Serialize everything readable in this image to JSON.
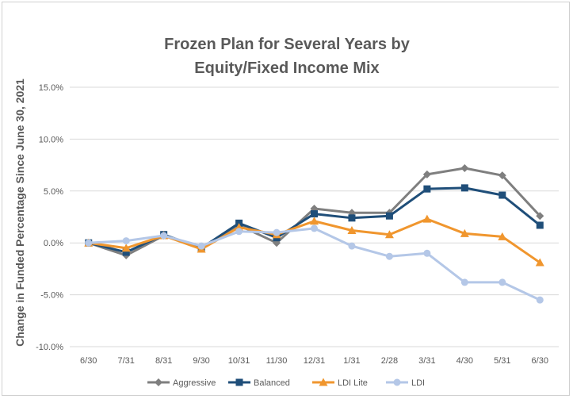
{
  "chart_data": {
    "type": "line",
    "title_lines": [
      "Frozen Plan for Several Years by",
      "Equity/Fixed Income Mix"
    ],
    "xlabel": "",
    "ylabel": "Change in Funded Percentage Since June 30, 2021",
    "categories": [
      "6/30",
      "7/31",
      "8/31",
      "9/30",
      "10/31",
      "11/30",
      "12/31",
      "1/31",
      "2/28",
      "3/31",
      "4/30",
      "5/31",
      "6/30"
    ],
    "ylim": [
      -10,
      15
    ],
    "yticks": [
      -10,
      -5,
      0,
      5,
      10,
      15
    ],
    "ytick_labels": [
      "-10.0%",
      "-5.0%",
      "0.0%",
      "5.0%",
      "10.0%",
      "15.0%"
    ],
    "grid": true,
    "legend_position": "bottom",
    "series": [
      {
        "name": "Aggressive",
        "color": "#7f7f7f",
        "marker": "diamond",
        "values": [
          0.0,
          -1.2,
          0.7,
          -0.5,
          1.7,
          0.0,
          3.3,
          2.9,
          2.9,
          6.6,
          7.2,
          6.5,
          2.6
        ]
      },
      {
        "name": "Balanced",
        "color": "#1f4e79",
        "marker": "square",
        "values": [
          0.0,
          -0.9,
          0.8,
          -0.5,
          1.9,
          0.5,
          2.8,
          2.4,
          2.6,
          5.2,
          5.3,
          4.6,
          1.7
        ]
      },
      {
        "name": "LDI Lite",
        "color": "#f0962e",
        "marker": "triangle",
        "values": [
          0.0,
          -0.5,
          0.7,
          -0.6,
          1.5,
          0.8,
          2.1,
          1.2,
          0.8,
          2.3,
          0.9,
          0.6,
          -1.9
        ]
      },
      {
        "name": "LDI",
        "color": "#b4c7e7",
        "marker": "circle",
        "values": [
          0.0,
          0.2,
          0.7,
          -0.3,
          1.1,
          1.0,
          1.4,
          -0.3,
          -1.3,
          -1.0,
          -3.8,
          -3.8,
          -5.5
        ]
      }
    ]
  }
}
